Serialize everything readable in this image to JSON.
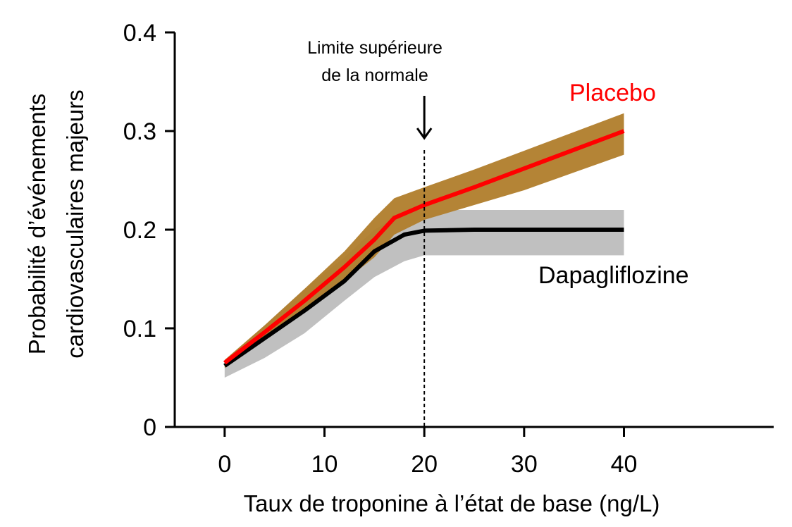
{
  "chart_data": {
    "type": "line",
    "xlabel": "Taux de troponine à l’état de base (ng/L)",
    "ylabel_lines": [
      "Probabilité d’événements",
      "cardiovasculaires majeurs"
    ],
    "xlim": [
      -5,
      55
    ],
    "ylim": [
      0,
      0.4
    ],
    "x_ticks": [
      0,
      10,
      20,
      30,
      40
    ],
    "y_ticks": [
      0,
      0.1,
      0.2,
      0.3,
      0.4
    ],
    "x_tick_labels": [
      "0",
      "10",
      "20",
      "30",
      "40"
    ],
    "y_tick_labels": [
      "0",
      "0.1",
      "0.2",
      "0.3",
      "0.4"
    ],
    "reference_line": {
      "x": 20,
      "label_lines": [
        "Limite supérieure",
        "de la normale"
      ]
    },
    "series": [
      {
        "name": "Placebo",
        "color": "#ff0000",
        "band_color": "#b07d2b",
        "x": [
          0,
          4,
          8,
          12,
          15,
          17,
          20,
          25,
          30,
          35,
          40
        ],
        "y": [
          0.065,
          0.096,
          0.128,
          0.162,
          0.19,
          0.212,
          0.225,
          0.243,
          0.262,
          0.281,
          0.3
        ],
        "lower": [
          0.06,
          0.088,
          0.118,
          0.148,
          0.172,
          0.195,
          0.21,
          0.225,
          0.24,
          0.258,
          0.276
        ],
        "upper": [
          0.068,
          0.103,
          0.14,
          0.178,
          0.212,
          0.232,
          0.243,
          0.261,
          0.28,
          0.299,
          0.318
        ]
      },
      {
        "name": "Dapagliflozine",
        "color": "#000000",
        "band_color": "#c0c0c0",
        "x": [
          0,
          4,
          8,
          12,
          15,
          18,
          20,
          25,
          30,
          35,
          40
        ],
        "y": [
          0.062,
          0.09,
          0.118,
          0.148,
          0.178,
          0.195,
          0.199,
          0.2,
          0.2,
          0.2,
          0.2
        ],
        "lower": [
          0.05,
          0.07,
          0.095,
          0.128,
          0.152,
          0.168,
          0.174,
          0.174,
          0.174,
          0.174,
          0.174
        ],
        "upper": [
          0.067,
          0.103,
          0.14,
          0.172,
          0.2,
          0.218,
          0.22,
          0.22,
          0.22,
          0.22,
          0.22
        ]
      }
    ]
  }
}
